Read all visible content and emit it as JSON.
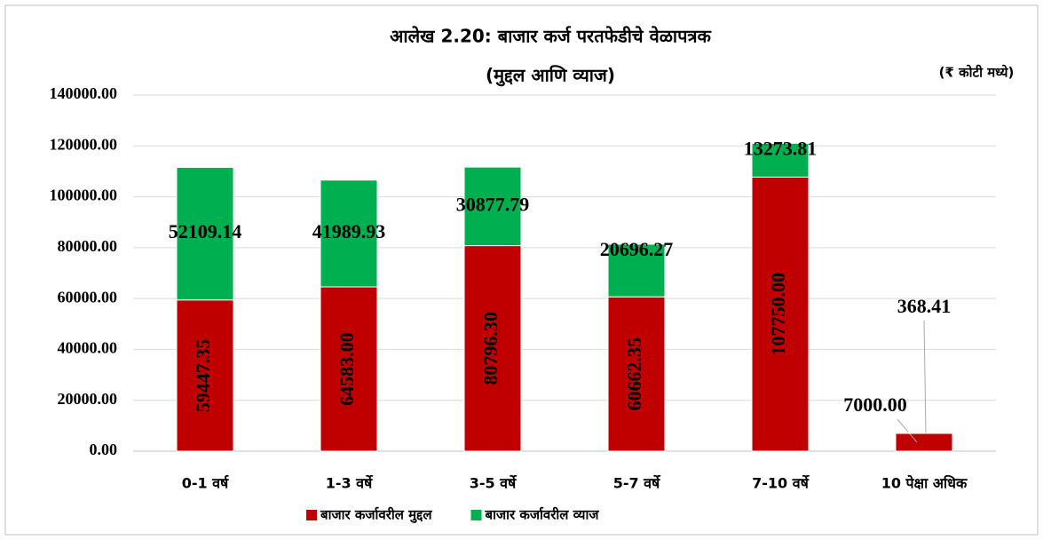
{
  "chart_data": {
    "type": "stacked_bar",
    "title": "आलेख 2.20: बाजार कर्ज परतफेडीचे वेळापत्रक",
    "subtitle": "(मुद्दल आणि व्याज)",
    "unit_note": "(₹ कोटी मध्ये)",
    "categories": [
      "0-1 वर्ष",
      "1-3 वर्षे",
      "3-5 वर्षे",
      "5-7 वर्षे",
      "7-10 वर्षे",
      "10 पेक्षा अधिक"
    ],
    "series": [
      {
        "name": "बाजार कर्जावरील मुद्दल",
        "color": "#c00000",
        "values": [
          59447.35,
          64583.0,
          80796.3,
          60662.35,
          107750.0,
          7000.0
        ],
        "value_labels": [
          "59447.35",
          "64583.00",
          "80796.30",
          "60662.35",
          "107750.00",
          "7000.00"
        ]
      },
      {
        "name": "बाजार कर्जावरील व्याज",
        "color": "#00b050",
        "values": [
          52109.14,
          41989.93,
          30877.79,
          20696.27,
          13273.81,
          368.41
        ],
        "value_labels": [
          "52109.14",
          "41989.93",
          "30877.79",
          "20696.27",
          "13273.81",
          "368.41"
        ]
      }
    ],
    "ylim": [
      0,
      140000
    ],
    "yticks": [
      {
        "value": 0,
        "label": "0.00"
      },
      {
        "value": 20000,
        "label": "20000.00"
      },
      {
        "value": 40000,
        "label": "40000.00"
      },
      {
        "value": 60000,
        "label": "60000.00"
      },
      {
        "value": 80000,
        "label": "80000.00"
      },
      {
        "value": 100000,
        "label": "100000.00"
      },
      {
        "value": 120000,
        "label": "120000.00"
      },
      {
        "value": 140000,
        "label": "140000.00"
      }
    ],
    "grid": true,
    "legend": "bottom"
  }
}
